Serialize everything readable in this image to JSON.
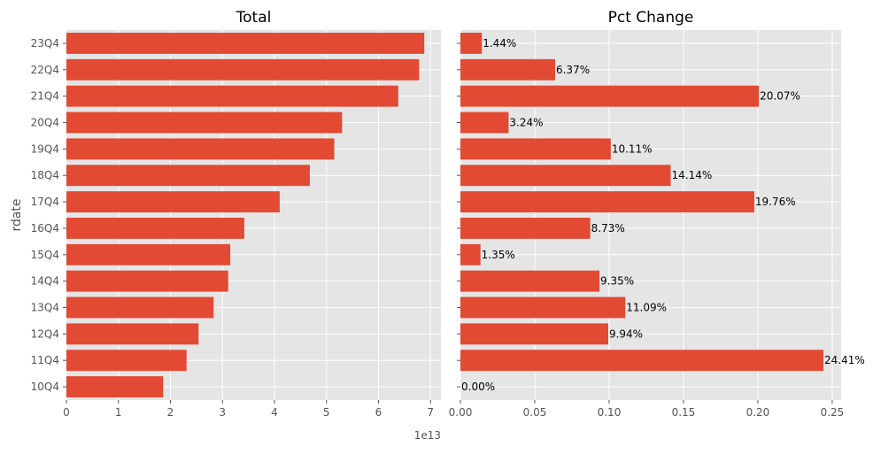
{
  "chart_data": [
    {
      "type": "bar",
      "orientation": "horizontal",
      "title": "Total",
      "ylabel": "rdate",
      "xlabel": "",
      "x_offset_label": "1e13",
      "categories": [
        "23Q4",
        "22Q4",
        "21Q4",
        "20Q4",
        "19Q4",
        "18Q4",
        "17Q4",
        "16Q4",
        "15Q4",
        "14Q4",
        "13Q4",
        "12Q4",
        "11Q4",
        "10Q4"
      ],
      "values": [
        68800000000000.0,
        67800000000000.0,
        63800000000000.0,
        53000000000000.0,
        51500000000000.0,
        46800000000000.0,
        41000000000000.0,
        34200000000000.0,
        31500000000000.0,
        31100000000000.0,
        28300000000000.0,
        25400000000000.0,
        23100000000000.0,
        18600000000000.0
      ],
      "xlim": [
        0,
        72000000000000.0
      ],
      "xticks": [
        0,
        1,
        2,
        3,
        4,
        5,
        6,
        7
      ],
      "grid": true,
      "bar_color": "#E24A33",
      "background_color": "#E5E5E5"
    },
    {
      "type": "bar",
      "orientation": "horizontal",
      "title": "Pct Change",
      "xlabel": "",
      "ylabel": "",
      "categories": [
        "23Q4",
        "22Q4",
        "21Q4",
        "20Q4",
        "19Q4",
        "18Q4",
        "17Q4",
        "16Q4",
        "15Q4",
        "14Q4",
        "13Q4",
        "12Q4",
        "11Q4",
        "10Q4"
      ],
      "values": [
        0.0144,
        0.0637,
        0.2007,
        0.0324,
        0.1011,
        0.1414,
        0.1976,
        0.0873,
        0.0135,
        0.0935,
        0.1109,
        0.0994,
        0.2441,
        0.0
      ],
      "data_labels": [
        "1.44%",
        "6.37%",
        "20.07%",
        "3.24%",
        "10.11%",
        "14.14%",
        "19.76%",
        "8.73%",
        "1.35%",
        "9.35%",
        "11.09%",
        "9.94%",
        "24.41%",
        "0.00%"
      ],
      "xlim": [
        0,
        0.256
      ],
      "xticks": [
        "0.00",
        "0.05",
        "0.10",
        "0.15",
        "0.20",
        "0.25"
      ],
      "grid": true,
      "bar_color": "#E24A33",
      "background_color": "#E5E5E5"
    }
  ]
}
